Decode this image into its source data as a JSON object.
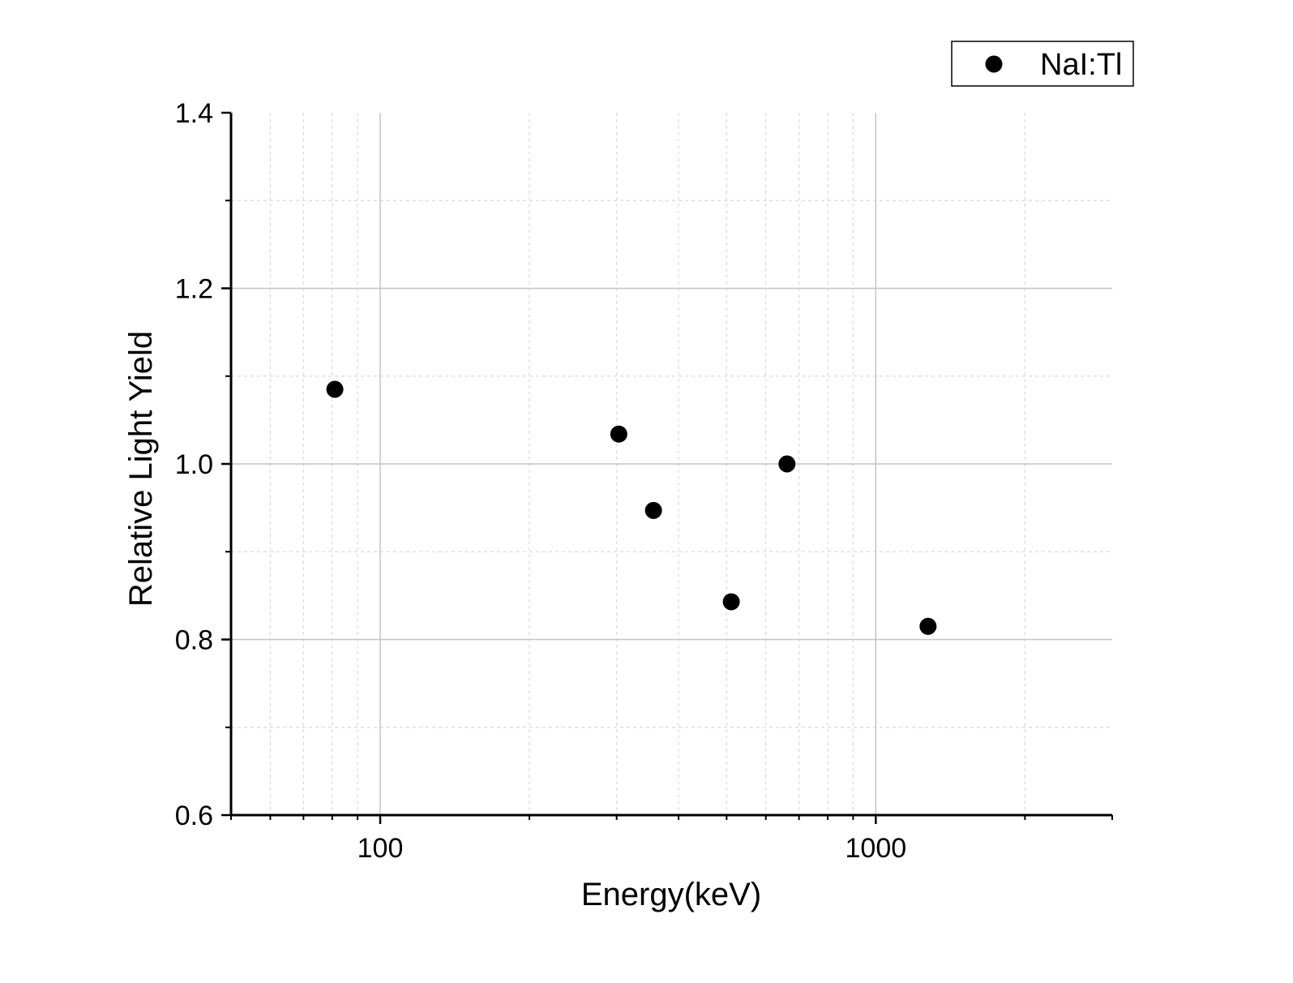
{
  "chart_data": {
    "type": "scatter",
    "title": "",
    "xlabel": "Energy(keV)",
    "ylabel": "Relative Light Yield",
    "x_scale": "log",
    "xlim": [
      50,
      3000
    ],
    "ylim": [
      0.6,
      1.4
    ],
    "x_major_ticks": [
      {
        "value": 100,
        "label": "100"
      },
      {
        "value": 1000,
        "label": "1000"
      }
    ],
    "x_minor_ticks": [
      60,
      70,
      80,
      90,
      200,
      300,
      400,
      500,
      600,
      700,
      800,
      900,
      2000,
      3000
    ],
    "y_major_ticks": [
      {
        "value": 0.6,
        "label": "0.6"
      },
      {
        "value": 0.8,
        "label": "0.8"
      },
      {
        "value": 1.0,
        "label": "1.0"
      },
      {
        "value": 1.2,
        "label": "1.2"
      },
      {
        "value": 1.4,
        "label": "1.4"
      }
    ],
    "y_minor_ticks": [
      0.7,
      0.9,
      1.1,
      1.3
    ],
    "grid": true,
    "legend_position": "top-right",
    "series": [
      {
        "name": "NaI:Tl",
        "color": "#000000",
        "marker": "circle",
        "points": [
          {
            "x": 81,
            "y": 1.085
          },
          {
            "x": 303,
            "y": 1.034
          },
          {
            "x": 356,
            "y": 0.947
          },
          {
            "x": 511,
            "y": 0.843
          },
          {
            "x": 662,
            "y": 1.0
          },
          {
            "x": 1275,
            "y": 0.815
          }
        ]
      }
    ]
  }
}
